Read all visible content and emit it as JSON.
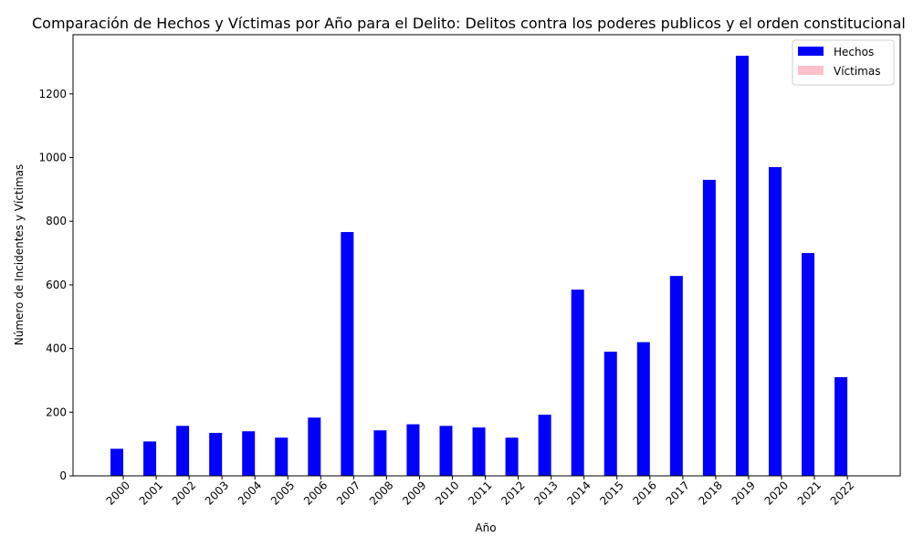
{
  "chart_data": {
    "type": "bar",
    "title": "Comparación de Hechos y Víctimas por Año para el Delito: Delitos contra los poderes publicos y el orden constitucional",
    "xlabel": "Año",
    "ylabel": "Número de Incidentes y Víctimas",
    "categories": [
      "2000",
      "2001",
      "2002",
      "2003",
      "2004",
      "2005",
      "2006",
      "2007",
      "2008",
      "2009",
      "2010",
      "2011",
      "2012",
      "2013",
      "2014",
      "2015",
      "2016",
      "2017",
      "2018",
      "2019",
      "2020",
      "2021",
      "2022"
    ],
    "series": [
      {
        "name": "Hechos",
        "color": "#0000ff",
        "values": [
          85,
          108,
          157,
          135,
          140,
          120,
          183,
          766,
          143,
          162,
          157,
          152,
          120,
          192,
          585,
          390,
          420,
          628,
          930,
          1320,
          970,
          700,
          310
        ]
      },
      {
        "name": "Víctimas",
        "color": "#ffc0cb",
        "values": [
          0,
          0,
          0,
          0,
          0,
          0,
          0,
          0,
          0,
          0,
          0,
          0,
          0,
          0,
          0,
          0,
          0,
          0,
          0,
          0,
          0,
          0,
          0
        ]
      }
    ],
    "ylim": [
      0,
      1386
    ],
    "yticks": [
      0,
      200,
      400,
      600,
      800,
      1000,
      1200
    ],
    "grid": false,
    "legend_position": "top-right"
  }
}
